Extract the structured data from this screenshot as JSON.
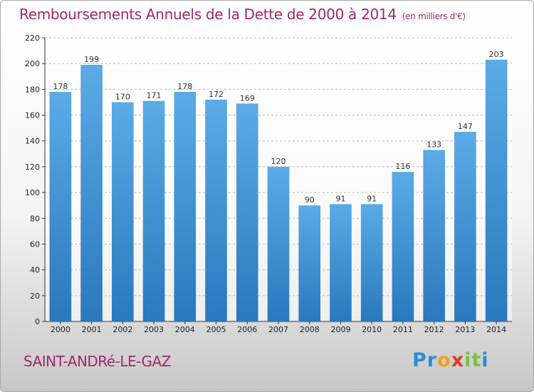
{
  "title": "Remboursements Annuels de la Dette de 2000 à 2014",
  "unit_note": "(en milliers d'€)",
  "commune": "SAINT-ANDRé-LE-GAZ",
  "logo": {
    "parts": [
      "P",
      "r",
      "o",
      "x",
      "i",
      "t",
      "i"
    ]
  },
  "colors": {
    "bar_top": "#5aabe6",
    "bar_bottom": "#2a78bd",
    "title": "#a0286a"
  },
  "chart_data": {
    "type": "bar",
    "title": "Remboursements Annuels de la Dette de 2000 à 2014",
    "xlabel": "",
    "ylabel": "",
    "categories": [
      "2000",
      "2001",
      "2002",
      "2003",
      "2004",
      "2005",
      "2006",
      "2007",
      "2008",
      "2009",
      "2010",
      "2011",
      "2012",
      "2013",
      "2014"
    ],
    "values": [
      178,
      199,
      170,
      171,
      178,
      172,
      169,
      120,
      90,
      91,
      91,
      116,
      133,
      147,
      203
    ],
    "ylim": [
      0,
      220
    ],
    "yticks": [
      0,
      20,
      40,
      60,
      80,
      100,
      120,
      140,
      160,
      180,
      200,
      220
    ],
    "grid": true
  }
}
